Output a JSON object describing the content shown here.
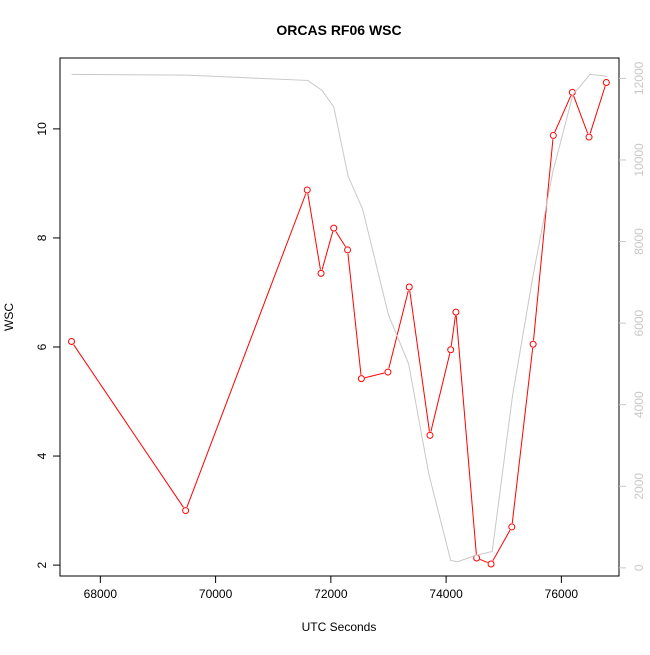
{
  "chart_data": {
    "type": "line",
    "title": "ORCAS RF06 WSC",
    "xlabel": "UTC Seconds",
    "ylabel": "WSC",
    "xlim": [
      67300,
      77000
    ],
    "ylim": [
      1.8,
      11.3
    ],
    "y2lim": [
      -200,
      12500
    ],
    "x_ticks": [
      68000,
      70000,
      72000,
      74000,
      76000
    ],
    "y_ticks": [
      2,
      4,
      6,
      8,
      10
    ],
    "y2_ticks": [
      0,
      2000,
      4000,
      6000,
      8000,
      10000,
      12000
    ],
    "grid": false,
    "colors": {
      "primary": "#ff0000",
      "secondary": "#c8c8c8",
      "axis": "#000000"
    },
    "series": [
      {
        "axis": "left",
        "style": "line-with-points",
        "x": [
          67500,
          69480,
          71590,
          71830,
          72050,
          72290,
          72530,
          72990,
          73360,
          73720,
          74080,
          74170,
          74530,
          74780,
          75140,
          75510,
          75860,
          76190,
          76480,
          76780
        ],
        "y": [
          6.1,
          3.0,
          8.88,
          7.35,
          8.18,
          7.78,
          5.42,
          5.54,
          7.1,
          4.38,
          5.95,
          6.64,
          2.13,
          2.02,
          2.7,
          6.05,
          9.88,
          10.67,
          9.85,
          10.85
        ]
      },
      {
        "axis": "right",
        "style": "line",
        "x": [
          67500,
          69500,
          71600,
          71850,
          72050,
          72300,
          72550,
          73000,
          73350,
          73700,
          74080,
          74200,
          74500,
          74800,
          75150,
          75500,
          75850,
          76200,
          76500,
          76800
        ],
        "y": [
          12100,
          12080,
          11950,
          11700,
          11300,
          9600,
          8800,
          6200,
          5000,
          2300,
          180,
          150,
          300,
          400,
          4200,
          7100,
          9700,
          11600,
          12100,
          12050
        ]
      }
    ]
  }
}
